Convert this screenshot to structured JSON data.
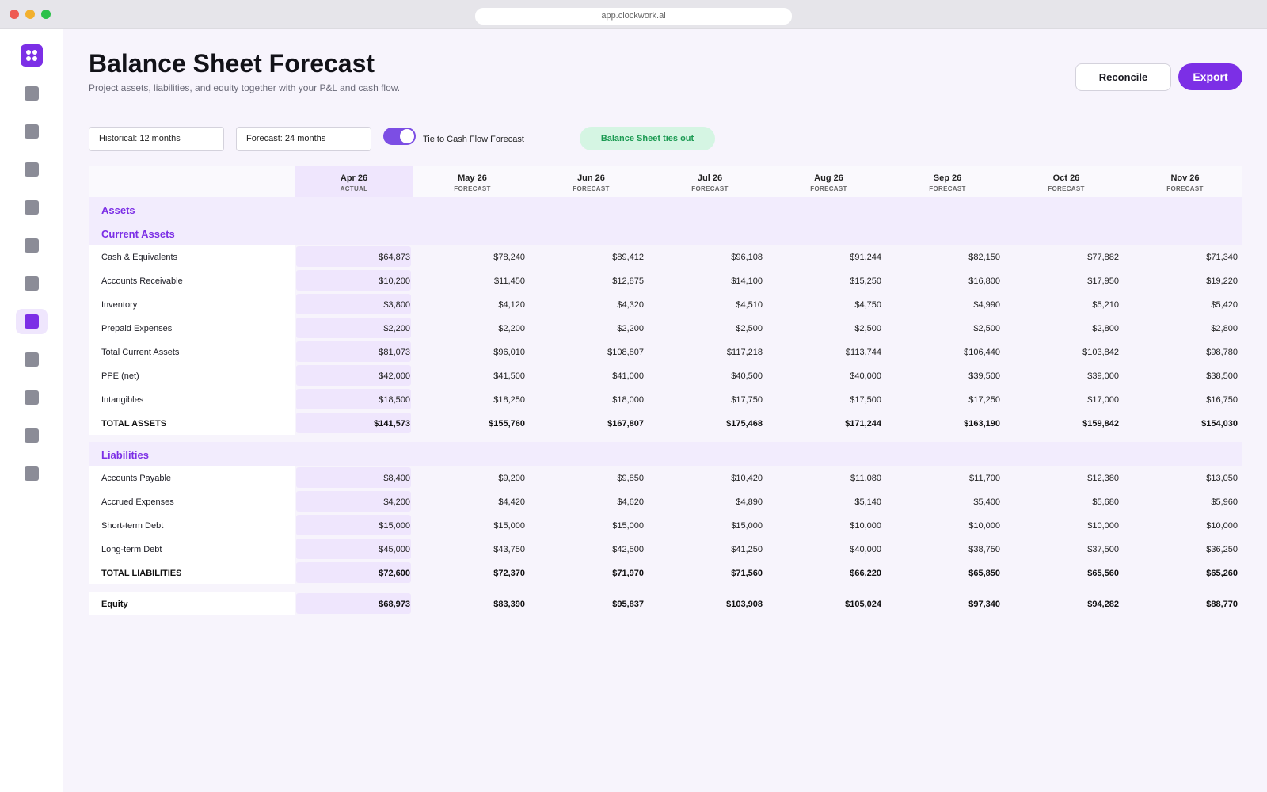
{
  "browser": {
    "url": "app.clockwork.ai"
  },
  "header": {
    "title": "Balance Sheet Forecast",
    "subtitle": "Project assets, liabilities, and equity together with your P&L and cash flow.",
    "reconcile_label": "Reconcile",
    "export_label": "Export"
  },
  "controls": {
    "historical": "Historical: 12 months",
    "forecast": "Forecast: 24 months",
    "toggle_label": "Tie to Cash Flow Forecast",
    "toggle_on": true,
    "status_badge": "Balance Sheet ties out"
  },
  "colors": {
    "accent": "#7c2fe6",
    "success_bg": "#d5f5e3",
    "success_text": "#1b9a52"
  },
  "table": {
    "columns": [
      {
        "month": "Apr 26",
        "type": "ACTUAL"
      },
      {
        "month": "May 26",
        "type": "FORECAST"
      },
      {
        "month": "Jun 26",
        "type": "FORECAST"
      },
      {
        "month": "Jul 26",
        "type": "FORECAST"
      },
      {
        "month": "Aug 26",
        "type": "FORECAST"
      },
      {
        "month": "Sep 26",
        "type": "FORECAST"
      },
      {
        "month": "Oct 26",
        "type": "FORECAST"
      },
      {
        "month": "Nov 26",
        "type": "FORECAST"
      }
    ],
    "sections": {
      "assets": "Assets",
      "current_assets": "Current Assets",
      "liabilities": "Liabilities"
    },
    "rows": {
      "cash": {
        "label": "Cash & Equivalents",
        "values": [
          "$64,873",
          "$78,240",
          "$89,412",
          "$96,108",
          "$91,244",
          "$82,150",
          "$77,882",
          "$71,340"
        ]
      },
      "ar": {
        "label": "Accounts Receivable",
        "values": [
          "$10,200",
          "$11,450",
          "$12,875",
          "$14,100",
          "$15,250",
          "$16,800",
          "$17,950",
          "$19,220"
        ]
      },
      "inventory": {
        "label": "Inventory",
        "values": [
          "$3,800",
          "$4,120",
          "$4,320",
          "$4,510",
          "$4,750",
          "$4,990",
          "$5,210",
          "$5,420"
        ]
      },
      "prepaid": {
        "label": "Prepaid Expenses",
        "values": [
          "$2,200",
          "$2,200",
          "$2,200",
          "$2,500",
          "$2,500",
          "$2,500",
          "$2,800",
          "$2,800"
        ]
      },
      "total_current": {
        "label": "Total Current Assets",
        "values": [
          "$81,073",
          "$96,010",
          "$108,807",
          "$117,218",
          "$113,744",
          "$106,440",
          "$103,842",
          "$98,780"
        ]
      },
      "ppe": {
        "label": "PPE (net)",
        "values": [
          "$42,000",
          "$41,500",
          "$41,000",
          "$40,500",
          "$40,000",
          "$39,500",
          "$39,000",
          "$38,500"
        ]
      },
      "intangibles": {
        "label": "Intangibles",
        "values": [
          "$18,500",
          "$18,250",
          "$18,000",
          "$17,750",
          "$17,500",
          "$17,250",
          "$17,000",
          "$16,750"
        ]
      },
      "total_assets": {
        "label": "TOTAL ASSETS",
        "values": [
          "$141,573",
          "$155,760",
          "$167,807",
          "$175,468",
          "$171,244",
          "$163,190",
          "$159,842",
          "$154,030"
        ]
      },
      "ap": {
        "label": "Accounts Payable",
        "values": [
          "$8,400",
          "$9,200",
          "$9,850",
          "$10,420",
          "$11,080",
          "$11,700",
          "$12,380",
          "$13,050"
        ]
      },
      "accrued": {
        "label": "Accrued Expenses",
        "values": [
          "$4,200",
          "$4,420",
          "$4,620",
          "$4,890",
          "$5,140",
          "$5,400",
          "$5,680",
          "$5,960"
        ]
      },
      "st_debt": {
        "label": "Short-term Debt",
        "values": [
          "$15,000",
          "$15,000",
          "$15,000",
          "$15,000",
          "$10,000",
          "$10,000",
          "$10,000",
          "$10,000"
        ]
      },
      "lt_debt": {
        "label": "Long-term Debt",
        "values": [
          "$45,000",
          "$43,750",
          "$42,500",
          "$41,250",
          "$40,000",
          "$38,750",
          "$37,500",
          "$36,250"
        ]
      },
      "total_liabilities": {
        "label": "TOTAL LIABILITIES",
        "values": [
          "$72,600",
          "$72,370",
          "$71,970",
          "$71,560",
          "$66,220",
          "$65,850",
          "$65,560",
          "$65,260"
        ]
      },
      "equity": {
        "label": "Equity",
        "values": [
          "$68,973",
          "$83,390",
          "$95,837",
          "$103,908",
          "$105,024",
          "$97,340",
          "$94,282",
          "$88,770"
        ]
      }
    }
  }
}
